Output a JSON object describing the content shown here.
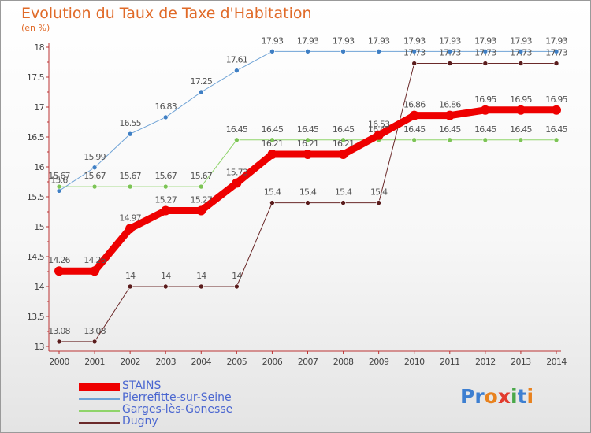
{
  "chart_data": {
    "type": "line",
    "title": "Evolution du Taux de Taxe d'Habitation",
    "subtitle": "(en %)",
    "x": [
      "2000",
      "2001",
      "2002",
      "2003",
      "2004",
      "2005",
      "2006",
      "2007",
      "2008",
      "2009",
      "2010",
      "2011",
      "2012",
      "2013",
      "2014"
    ],
    "yticks": [
      "13",
      "13.5",
      "14",
      "14.5",
      "15",
      "15.5",
      "16",
      "16.5",
      "17",
      "17.5",
      "18"
    ],
    "ylim": [
      13,
      18
    ],
    "grid": false,
    "legend_position": "bottom-left",
    "series": [
      {
        "name": "Pierrefitte-sur-Seine",
        "color": "#6fa3d6",
        "marker": "#3f7fc4",
        "width": 1,
        "values": [
          15.6,
          15.99,
          16.55,
          16.83,
          17.25,
          17.61,
          17.93,
          17.93,
          17.93,
          17.93,
          17.93,
          17.93,
          17.93,
          17.93,
          17.93
        ],
        "labels": [
          "15.6",
          "15.99",
          "16.55",
          "16.83",
          "17.25",
          "17.61",
          "17.93",
          "17.93",
          "17.93",
          "17.93",
          "17.93",
          "17.93",
          "17.93",
          "17.93",
          "17.93"
        ]
      },
      {
        "name": "Garges-lès-Gonesse",
        "color": "#8fd46a",
        "marker": "#7cc455",
        "width": 1,
        "values": [
          15.67,
          15.67,
          15.67,
          15.67,
          15.67,
          16.45,
          16.45,
          16.45,
          16.45,
          16.45,
          16.45,
          16.45,
          16.45,
          16.45,
          16.45
        ],
        "labels": [
          "15.67",
          "15.67",
          "15.67",
          "15.67",
          "15.67",
          "16.45",
          "16.45",
          "16.45",
          "16.45",
          "16.45",
          "16.45",
          "16.45",
          "16.45",
          "16.45",
          "16.45"
        ]
      },
      {
        "name": "Dugny",
        "color": "#6b2a2a",
        "marker": "#5a1c1c",
        "width": 1,
        "values": [
          13.08,
          13.08,
          14,
          14,
          14,
          14,
          15.4,
          15.4,
          15.4,
          15.4,
          17.73,
          17.73,
          17.73,
          17.73,
          17.73
        ],
        "labels": [
          "13.08",
          "13.08",
          "14",
          "14",
          "14",
          "14",
          "15.4",
          "15.4",
          "15.4",
          "15.4",
          "17.73",
          "17.73",
          "17.73",
          "17.73",
          "17.73"
        ]
      },
      {
        "name": "STAINS",
        "color": "#ee0000",
        "marker": "#ee0000",
        "width": 9,
        "values": [
          14.26,
          14.26,
          14.97,
          15.27,
          15.27,
          15.73,
          16.21,
          16.21,
          16.21,
          16.53,
          16.86,
          16.86,
          16.95,
          16.95,
          16.95
        ],
        "labels": [
          "14.26",
          "14.26",
          "14.97",
          "15.27",
          "15.27",
          "15.73",
          "16.21",
          "16.21",
          "16.21",
          "16.53",
          "16.86",
          "16.86",
          "16.95",
          "16.95",
          "16.95"
        ]
      }
    ],
    "legend_order": [
      "STAINS",
      "Pierrefitte-sur-Seine",
      "Garges-lès-Gonesse",
      "Dugny"
    ]
  },
  "logo": {
    "text": "Proxiti"
  }
}
